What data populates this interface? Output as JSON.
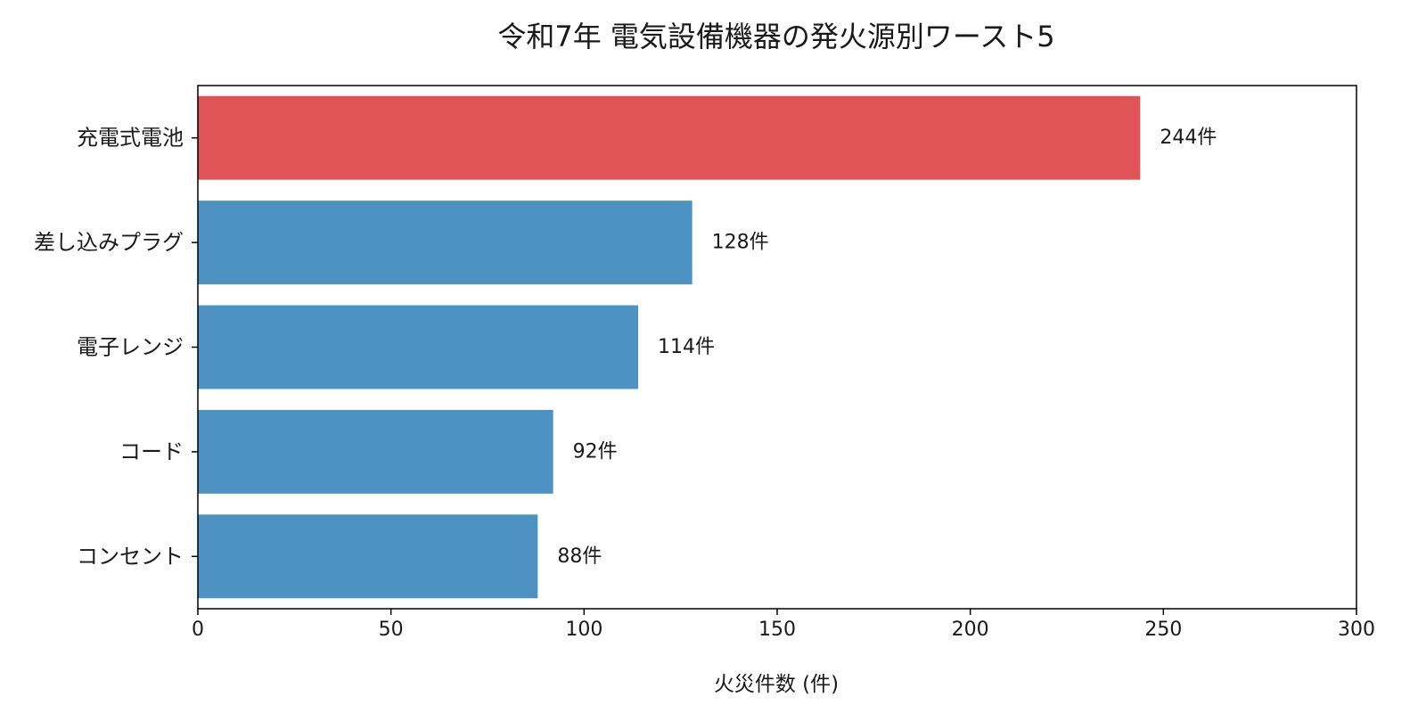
{
  "chart_data": {
    "type": "bar",
    "orientation": "horizontal",
    "title": "令和7年 電気設備機器の発火源別ワースト5",
    "xlabel": "火災件数 (件)",
    "ylabel": "",
    "xlim": [
      0,
      300
    ],
    "xticks": [
      0,
      50,
      100,
      150,
      200,
      250,
      300
    ],
    "grid": false,
    "categories": [
      "充電式電池",
      "差し込みプラグ",
      "電子レンジ",
      "コード",
      "コンセント"
    ],
    "values": [
      244,
      128,
      114,
      92,
      88
    ],
    "value_labels": [
      "244件",
      "128件",
      "114件",
      "92件",
      "88件"
    ],
    "colors": {
      "highlight": "#e05357",
      "default": "#4c93c3"
    },
    "highlight_index": 0
  }
}
